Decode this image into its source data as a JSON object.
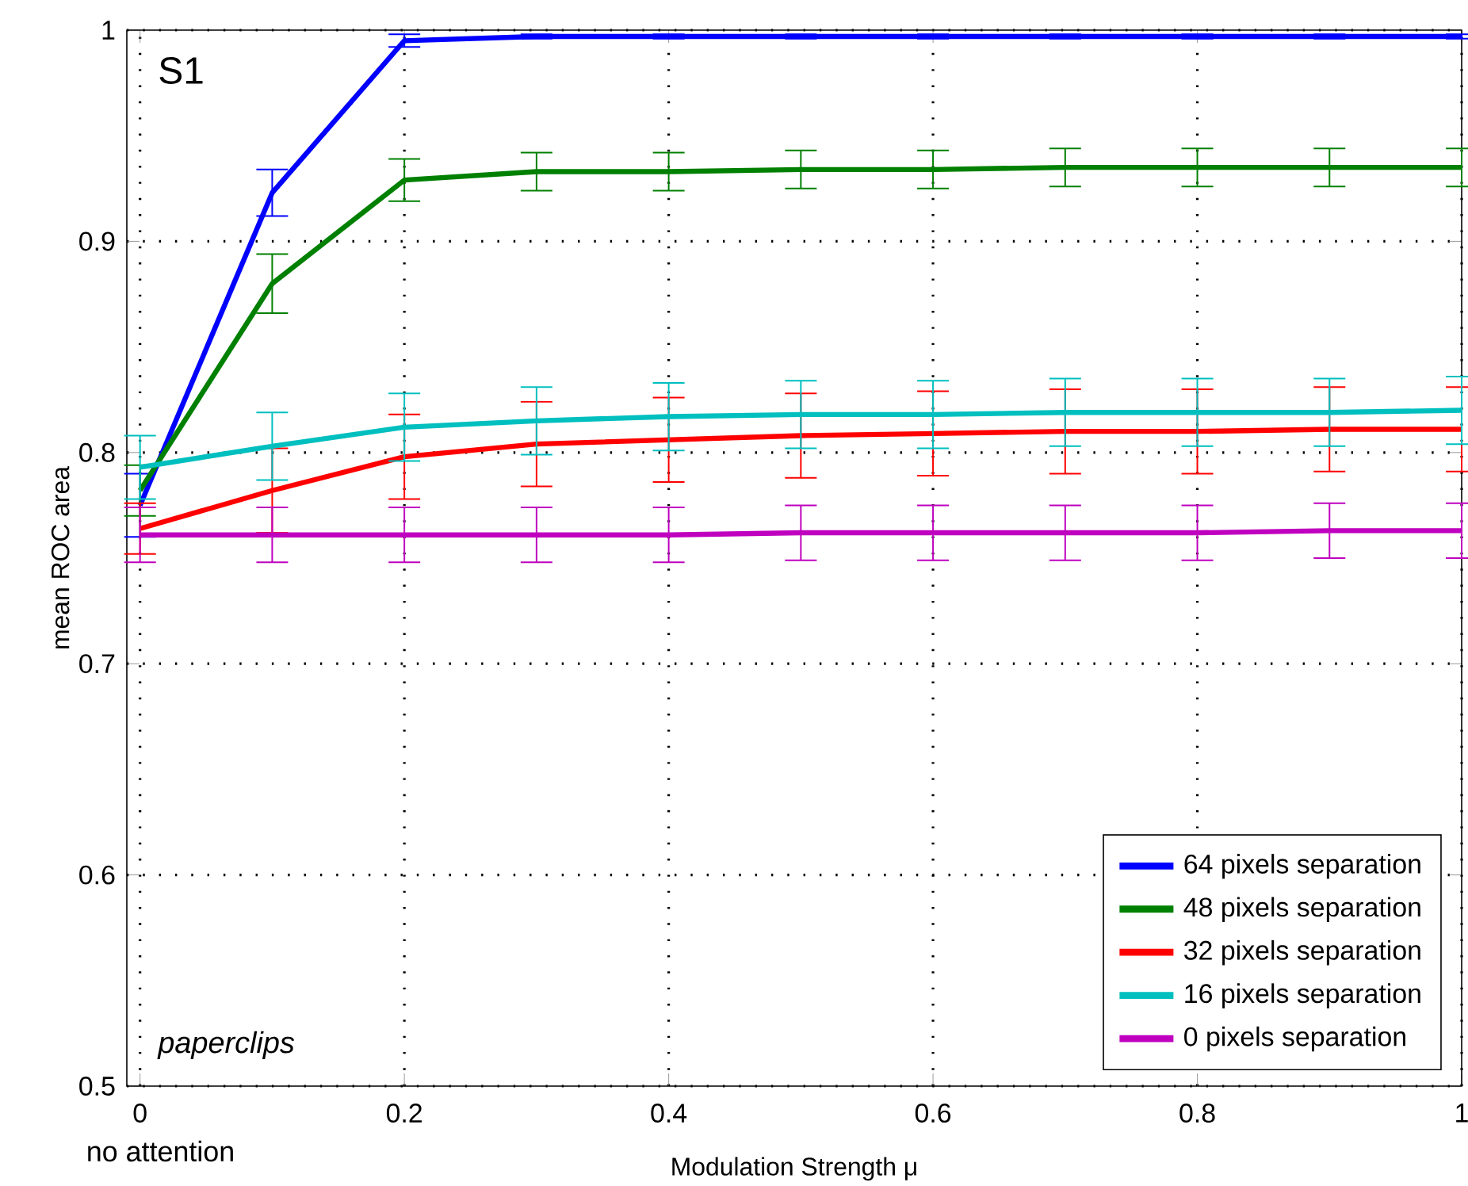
{
  "chart_data": {
    "type": "line",
    "xlabel": "Modulation Strength μ",
    "ylabel": "mean ROC area",
    "annotations": [
      "S1",
      "paperclips",
      "no attention"
    ],
    "x": [
      0,
      0.1,
      0.2,
      0.3,
      0.4,
      0.5,
      0.6,
      0.7,
      0.8,
      0.9,
      1
    ],
    "xlim": [
      -0.01,
      1
    ],
    "ylim": [
      0.5,
      1.0
    ],
    "xticks": [
      0,
      0.2,
      0.4,
      0.6,
      0.8,
      1
    ],
    "yticks": [
      0.5,
      0.6,
      0.7,
      0.8,
      0.9,
      1
    ],
    "grid": true,
    "legend": "bottom right",
    "marker": "none",
    "line_style": "solid",
    "series": [
      {
        "name": "64 pixels separation",
        "color": "#0000ff",
        "values": [
          0.775,
          0.923,
          0.995,
          0.997,
          0.997,
          0.997,
          0.997,
          0.997,
          0.997,
          0.997,
          0.997
        ],
        "errors": [
          0.015,
          0.011,
          0.003,
          0.001,
          0.001,
          0.001,
          0.001,
          0.001,
          0.001,
          0.001,
          0.001
        ]
      },
      {
        "name": "48 pixels separation",
        "color": "#008000",
        "values": [
          0.782,
          0.88,
          0.929,
          0.933,
          0.933,
          0.934,
          0.934,
          0.935,
          0.935,
          0.935,
          0.935
        ],
        "errors": [
          0.012,
          0.014,
          0.01,
          0.009,
          0.009,
          0.009,
          0.009,
          0.009,
          0.009,
          0.009,
          0.009
        ]
      },
      {
        "name": "32 pixels separation",
        "color": "#ff0000",
        "values": [
          0.764,
          0.782,
          0.798,
          0.804,
          0.806,
          0.808,
          0.809,
          0.81,
          0.81,
          0.811,
          0.811
        ],
        "errors": [
          0.012,
          0.02,
          0.02,
          0.02,
          0.02,
          0.02,
          0.02,
          0.02,
          0.02,
          0.02,
          0.02
        ]
      },
      {
        "name": "16 pixels separation",
        "color": "#00bfbf",
        "values": [
          0.793,
          0.803,
          0.812,
          0.815,
          0.817,
          0.818,
          0.818,
          0.819,
          0.819,
          0.819,
          0.82
        ],
        "errors": [
          0.015,
          0.016,
          0.016,
          0.016,
          0.016,
          0.016,
          0.016,
          0.016,
          0.016,
          0.016,
          0.016
        ]
      },
      {
        "name": "0 pixels separation",
        "color": "#bf00bf",
        "values": [
          0.761,
          0.761,
          0.761,
          0.761,
          0.761,
          0.762,
          0.762,
          0.762,
          0.762,
          0.763,
          0.763
        ],
        "errors": [
          0.013,
          0.013,
          0.013,
          0.013,
          0.013,
          0.013,
          0.013,
          0.013,
          0.013,
          0.013,
          0.013
        ]
      }
    ]
  }
}
